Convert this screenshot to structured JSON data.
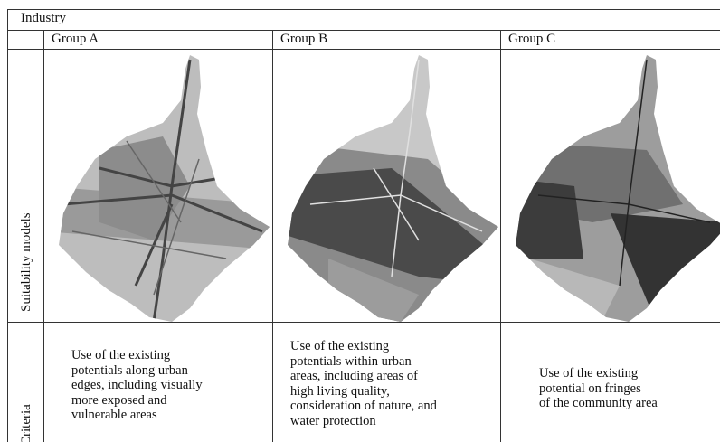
{
  "table": {
    "title": "Industry",
    "columns": [
      "Group A",
      "Group B",
      "Group C"
    ],
    "row_labels": [
      "Suitability models",
      "Criteria"
    ],
    "criteria": [
      {
        "lines": [
          "Use of the existing",
          "potentials along urban",
          "edges, including visually",
          "more exposed and",
          "vulnerable areas"
        ]
      },
      {
        "lines": [
          "Use of the existing",
          "potentials within urban",
          "areas, including areas of",
          "high living quality,",
          "consideration of nature, and",
          "water protection"
        ]
      },
      {
        "lines": [
          "Use of the existing",
          "potential on fringes",
          "of the community area"
        ]
      }
    ]
  }
}
